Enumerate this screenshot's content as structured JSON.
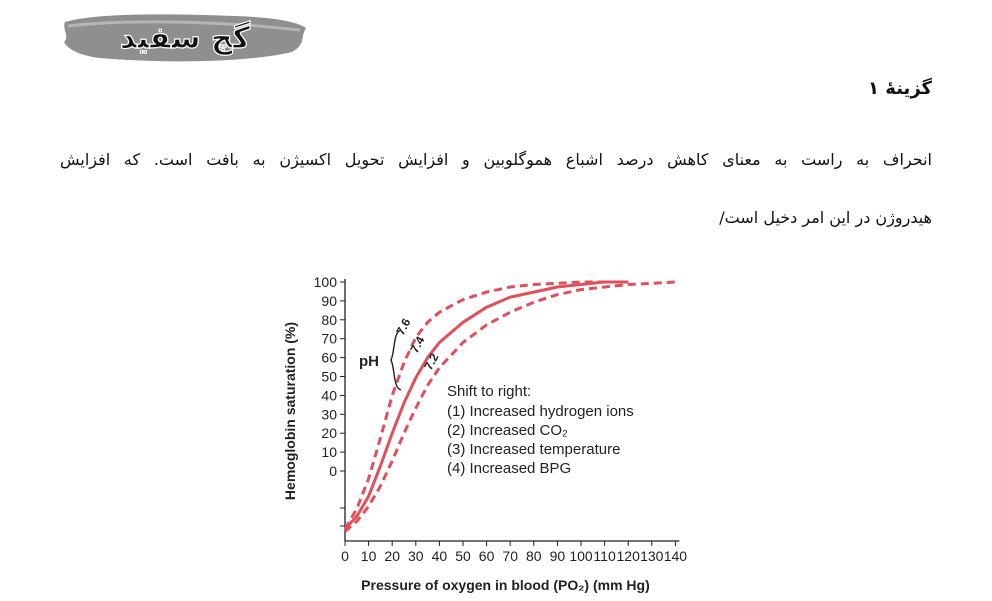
{
  "logo": {
    "text": "گچ سفید"
  },
  "heading": "گزینۀ ۱",
  "paragraph": {
    "line1": "انحراف به راست به معنای کاهش درصد اشباع هموگلوبین و افزایش تحویل اکسیژن به بافت است. که افزایش",
    "line2": "هیدروژن در این امر دخیل است/"
  },
  "chart_data": {
    "type": "line",
    "xlabel": "Pressure of oxygen in blood (PO₂) (mm Hg)",
    "ylabel": "Hemoglobin saturation (%)",
    "xlim": [
      0,
      140
    ],
    "ylim": [
      0,
      100
    ],
    "x_ticks": [
      "0",
      "10",
      "20",
      "30",
      "40",
      "50",
      "60",
      "70",
      "80",
      "90",
      "100",
      "110",
      "120",
      "130",
      "140"
    ],
    "y_ticks": [
      "100",
      "90",
      "80",
      "70",
      "60",
      "50",
      "40",
      "30",
      "20",
      "10",
      "0"
    ],
    "series": [
      {
        "name": "7.6",
        "style": "dashed",
        "color": "#e0505a",
        "x": [
          0,
          5,
          10,
          15,
          20,
          25,
          30,
          35,
          40,
          50,
          60,
          70,
          80,
          90,
          100,
          110,
          120
        ],
        "y": [
          2,
          10,
          22,
          38,
          55,
          68,
          78,
          84,
          88,
          93,
          96,
          98,
          99,
          99.5,
          100,
          100,
          100
        ]
      },
      {
        "name": "7.4",
        "style": "solid",
        "color": "#e0505a",
        "x": [
          0,
          5,
          10,
          15,
          20,
          25,
          30,
          35,
          40,
          50,
          60,
          70,
          80,
          90,
          100,
          110,
          120
        ],
        "y": [
          2,
          7,
          15,
          27,
          40,
          52,
          62,
          70,
          76,
          84,
          90,
          94,
          96,
          98,
          99,
          100,
          100
        ]
      },
      {
        "name": "7.2",
        "style": "dashed",
        "color": "#e0505a",
        "x": [
          0,
          5,
          10,
          15,
          20,
          25,
          30,
          35,
          40,
          50,
          60,
          70,
          80,
          90,
          100,
          110,
          120,
          130,
          140
        ],
        "y": [
          1,
          5,
          11,
          19,
          29,
          40,
          50,
          59,
          66,
          76,
          83,
          88,
          92,
          95,
          97,
          98,
          99,
          99.5,
          100
        ]
      }
    ],
    "ph_label": "pH",
    "annotation": {
      "title": "Shift to right:",
      "items": [
        "(1) Increased hydrogen ions",
        "(2) Increased CO₂",
        "(3) Increased temperature",
        "(4) Increased BPG"
      ]
    }
  }
}
